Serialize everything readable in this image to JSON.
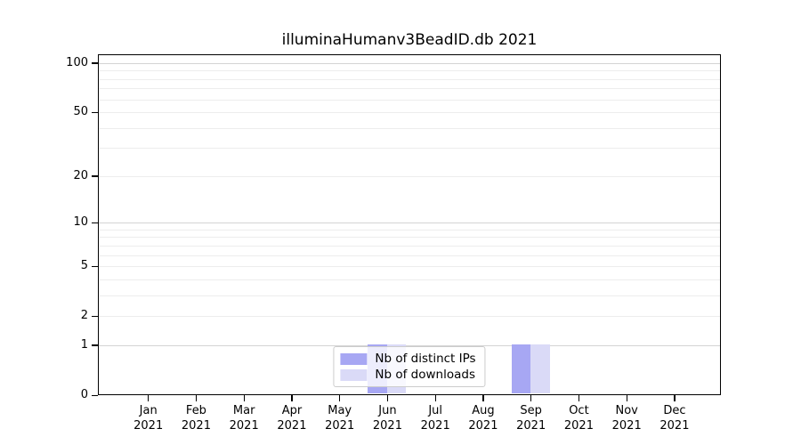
{
  "figure": {
    "title": "illuminaHumanv3BeadID.db 2021"
  },
  "chart_data": {
    "type": "bar",
    "title": "illuminaHumanv3BeadID.db 2021",
    "categories": [
      "Jan",
      "Feb",
      "Mar",
      "Apr",
      "May",
      "Jun",
      "Jul",
      "Aug",
      "Sep",
      "Oct",
      "Nov",
      "Dec"
    ],
    "category_year": "2021",
    "series": [
      {
        "name": "Nb of distinct IPs",
        "color": "#a7a7f3",
        "values": [
          0,
          0,
          0,
          0,
          0,
          1,
          0,
          0,
          1,
          0,
          0,
          0
        ]
      },
      {
        "name": "Nb of downloads",
        "color": "#dadaf7",
        "values": [
          0,
          0,
          0,
          0,
          0,
          1,
          0,
          0,
          1,
          0,
          0,
          0
        ]
      }
    ],
    "xlabel": "",
    "ylabel": "",
    "yscale": "log1p",
    "ylim": [
      0,
      113
    ],
    "yticks": [
      100,
      50,
      20,
      10,
      5,
      2,
      1,
      0
    ],
    "major_gridlines": [
      1,
      10,
      100
    ],
    "minor_gridlines": [
      2,
      3,
      4,
      5,
      6,
      7,
      8,
      9,
      20,
      30,
      40,
      50,
      60,
      70,
      80,
      90
    ],
    "grid": true,
    "legend_position": "lower center inside"
  },
  "legend": {
    "entries": [
      {
        "label": "Nb of distinct IPs",
        "color": "#a7a7f3"
      },
      {
        "label": "Nb of downloads",
        "color": "#dadaf7"
      }
    ]
  },
  "colors": {
    "major_grid": "#d4d4d4",
    "minor_grid": "#ededed",
    "spine": "#000000",
    "legend_border": "#cccccc"
  }
}
